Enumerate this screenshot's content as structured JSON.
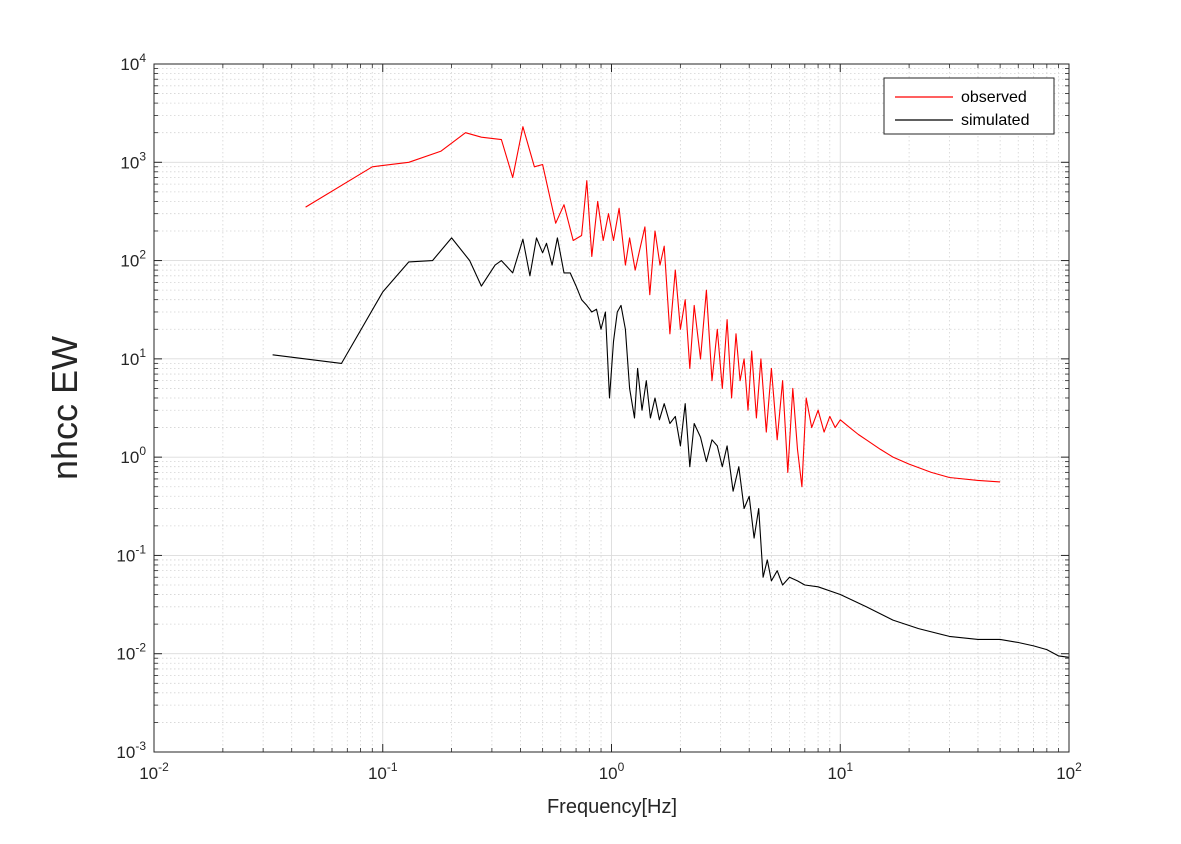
{
  "chart_data": {
    "type": "line",
    "xscale": "log",
    "yscale": "log",
    "xlim": [
      0.01,
      100
    ],
    "ylim": [
      0.001,
      10000
    ],
    "grid": true,
    "minor_grid": true,
    "xlabel": "Frequency[Hz]",
    "ylabel": "nhcc EW",
    "legend_position": "top-right",
    "x_ticks": [
      {
        "base": "10",
        "exp": "-2"
      },
      {
        "base": "10",
        "exp": "-1"
      },
      {
        "base": "10",
        "exp": "0"
      },
      {
        "base": "10",
        "exp": "1"
      },
      {
        "base": "10",
        "exp": "2"
      }
    ],
    "y_ticks": [
      {
        "base": "10",
        "exp": "-3"
      },
      {
        "base": "10",
        "exp": "-2"
      },
      {
        "base": "10",
        "exp": "-1"
      },
      {
        "base": "10",
        "exp": "0"
      },
      {
        "base": "10",
        "exp": "1"
      },
      {
        "base": "10",
        "exp": "2"
      },
      {
        "base": "10",
        "exp": "3"
      },
      {
        "base": "10",
        "exp": "4"
      }
    ],
    "series": [
      {
        "name": "observed",
        "color": "#ff0000",
        "x": [
          0.046,
          0.09,
          0.13,
          0.18,
          0.23,
          0.27,
          0.33,
          0.37,
          0.41,
          0.46,
          0.5,
          0.57,
          0.62,
          0.68,
          0.74,
          0.78,
          0.82,
          0.87,
          0.92,
          0.97,
          1.02,
          1.08,
          1.15,
          1.2,
          1.27,
          1.33,
          1.4,
          1.47,
          1.55,
          1.63,
          1.7,
          1.8,
          1.9,
          2.0,
          2.1,
          2.2,
          2.3,
          2.45,
          2.6,
          2.75,
          2.9,
          3.05,
          3.2,
          3.35,
          3.5,
          3.65,
          3.8,
          3.95,
          4.1,
          4.3,
          4.5,
          4.75,
          5.0,
          5.3,
          5.6,
          5.9,
          6.2,
          6.5,
          6.8,
          7.1,
          7.5,
          8.0,
          8.5,
          9.0,
          9.5,
          10,
          11,
          12,
          13,
          15,
          17,
          20,
          25,
          30,
          40,
          50
        ],
        "y": [
          350,
          900,
          1000,
          1300,
          2000,
          1800,
          1700,
          700,
          2300,
          900,
          950,
          240,
          370,
          160,
          180,
          650,
          110,
          400,
          160,
          300,
          160,
          340,
          90,
          170,
          80,
          130,
          220,
          45,
          200,
          90,
          140,
          18,
          80,
          20,
          40,
          8,
          35,
          10,
          50,
          6,
          20,
          5,
          25,
          4,
          18,
          6,
          10,
          3,
          12,
          2.5,
          10,
          1.8,
          8,
          1.5,
          6,
          0.7,
          5,
          1.2,
          0.5,
          4,
          2,
          3,
          1.8,
          2.6,
          2,
          2.4,
          2,
          1.7,
          1.5,
          1.2,
          1.0,
          0.85,
          0.7,
          0.62,
          0.58,
          0.56
        ]
      },
      {
        "name": "simulated",
        "color": "#000000",
        "x": [
          0.033,
          0.066,
          0.1,
          0.13,
          0.165,
          0.2,
          0.24,
          0.27,
          0.31,
          0.33,
          0.37,
          0.41,
          0.44,
          0.47,
          0.5,
          0.52,
          0.55,
          0.58,
          0.62,
          0.66,
          0.7,
          0.74,
          0.78,
          0.82,
          0.86,
          0.9,
          0.94,
          0.98,
          1.02,
          1.06,
          1.1,
          1.15,
          1.2,
          1.26,
          1.3,
          1.36,
          1.42,
          1.48,
          1.55,
          1.62,
          1.7,
          1.8,
          1.9,
          2.0,
          2.1,
          2.2,
          2.3,
          2.45,
          2.6,
          2.75,
          2.9,
          3.05,
          3.2,
          3.4,
          3.6,
          3.8,
          4.0,
          4.2,
          4.4,
          4.6,
          4.8,
          5.0,
          5.3,
          5.6,
          6.0,
          6.5,
          7.0,
          8.0,
          10,
          13,
          17,
          22,
          30,
          40,
          50,
          60,
          70,
          80,
          90,
          100
        ],
        "y": [
          11,
          9,
          48,
          97,
          100,
          170,
          100,
          55,
          90,
          100,
          75,
          165,
          70,
          170,
          120,
          150,
          90,
          170,
          75,
          75,
          55,
          40,
          35,
          30,
          32,
          20,
          30,
          4,
          15,
          30,
          35,
          20,
          5,
          2.5,
          8,
          3,
          6,
          2.5,
          4,
          2.4,
          3.5,
          2.2,
          2.6,
          1.3,
          3.5,
          0.8,
          2.2,
          1.6,
          0.9,
          1.5,
          1.3,
          0.8,
          1.3,
          0.45,
          0.8,
          0.3,
          0.4,
          0.15,
          0.3,
          0.06,
          0.09,
          0.055,
          0.07,
          0.05,
          0.06,
          0.055,
          0.05,
          0.048,
          0.04,
          0.03,
          0.022,
          0.018,
          0.015,
          0.014,
          0.014,
          0.013,
          0.012,
          0.011,
          0.0095,
          0.0092
        ]
      }
    ]
  }
}
